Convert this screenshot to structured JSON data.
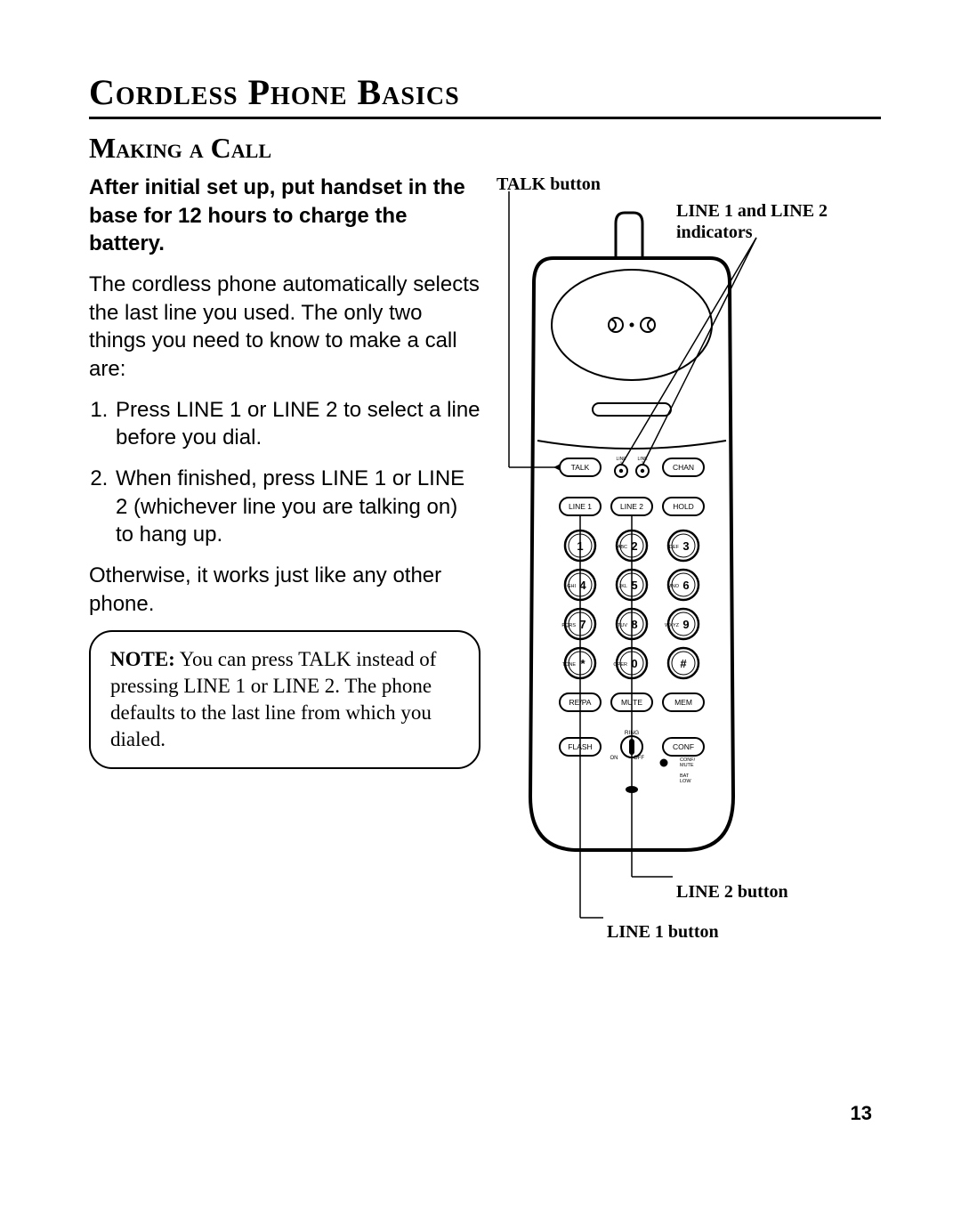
{
  "section_title": "Cordless Phone Basics",
  "subsection_title": "Making a Call",
  "intro_bold": "After initial set up, put handset in the base for 12 hours to charge the battery.",
  "body_1": "The cordless phone automatically selects the last line you used. The only two things you need to know to make a call are:",
  "steps": [
    "Press LINE 1 or LINE 2 to select a line before you dial.",
    "When finished, press LINE 1 or LINE 2 (whichever line you are talking on) to hang up."
  ],
  "body_2": "Otherwise, it works just like any other phone.",
  "note_label": "NOTE:",
  "note_text": " You can press TALK instead of pressing LINE 1 or LINE 2. The phone defaults to the last line from which you dialed.",
  "callouts": {
    "talk": "TALK button",
    "indicators": "LINE 1 and LINE 2 indicators",
    "line2": "LINE 2 button",
    "line1": "LINE 1 button"
  },
  "page_number": "13",
  "phone": {
    "outline_stroke": "#000000",
    "outline_width": 4,
    "body_fill": "#ffffff",
    "earpiece_fill": "#ffffff",
    "keypad": {
      "rows": [
        [
          {
            "small": "",
            "big": "TALK",
            "shape": "pill"
          },
          {
            "center_indicators": true
          },
          {
            "small": "",
            "big": "CHAN",
            "shape": "pill"
          }
        ],
        [
          {
            "small": "",
            "big": "LINE 1",
            "shape": "pill"
          },
          {
            "small": "",
            "big": "LINE 2",
            "shape": "pill"
          },
          {
            "small": "",
            "big": "HOLD",
            "shape": "pill"
          }
        ],
        [
          {
            "small": "",
            "big": "1"
          },
          {
            "small": "ABC",
            "big": "2"
          },
          {
            "small": "DEF",
            "big": "3"
          }
        ],
        [
          {
            "small": "GHI",
            "big": "4"
          },
          {
            "small": "JKL",
            "big": "5"
          },
          {
            "small": "MNO",
            "big": "6"
          }
        ],
        [
          {
            "small": "PQRS",
            "big": "7"
          },
          {
            "small": "TUV",
            "big": "8"
          },
          {
            "small": "WXYZ",
            "big": "9"
          }
        ],
        [
          {
            "small": "TONE",
            "big": "*"
          },
          {
            "small": "OPER",
            "big": "0"
          },
          {
            "small": "",
            "big": "#"
          }
        ],
        [
          {
            "small": "",
            "big": "RE/PA",
            "shape": "pill"
          },
          {
            "small": "",
            "big": "MUTE",
            "shape": "pill"
          },
          {
            "small": "",
            "big": "MEM",
            "shape": "pill"
          }
        ]
      ],
      "flash_label": "FLASH",
      "conf_label": "CONF",
      "ring_label": "RING",
      "on_label": "ON",
      "off_label": "OFF",
      "conf_mute_label": "CONF/\nMUTE",
      "bat_low_label": "BAT\nLOW",
      "line1_ind": "LINE\n1",
      "line2_ind": "LINE\n2"
    }
  }
}
